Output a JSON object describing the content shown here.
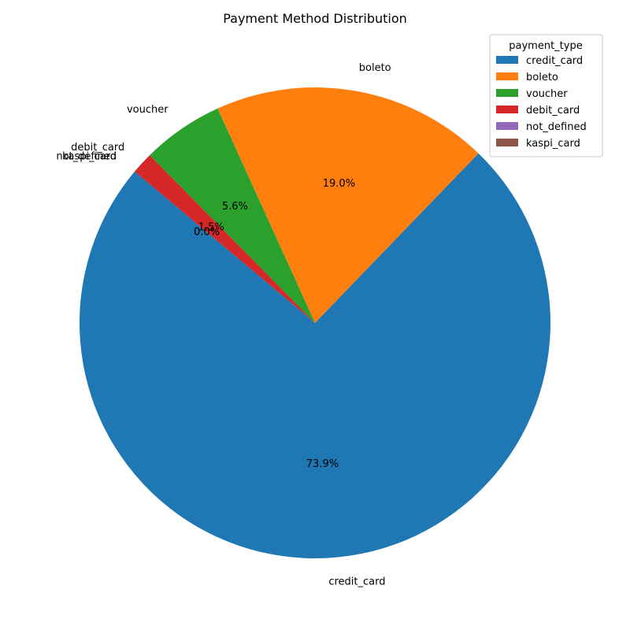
{
  "chart_data": {
    "type": "pie",
    "title": "Payment Method Distribution",
    "legend_title": "payment_type",
    "legend_position": "top-right",
    "start_angle_deg": 140,
    "direction": "counterclockwise",
    "slices": [
      {
        "label": "credit_card",
        "value": 73.9,
        "pct_label": "73.9%",
        "color": "#1f77b4"
      },
      {
        "label": "boleto",
        "value": 19.0,
        "pct_label": "19.0%",
        "color": "#ff7f0e"
      },
      {
        "label": "voucher",
        "value": 5.6,
        "pct_label": "5.6%",
        "color": "#2ca02c"
      },
      {
        "label": "debit_card",
        "value": 1.5,
        "pct_label": "1.5%",
        "color": "#d62728"
      },
      {
        "label": "not_defined",
        "value": 0.0,
        "pct_label": "0.0%",
        "color": "#9467bd"
      },
      {
        "label": "kaspi_card",
        "value": 0.0,
        "pct_label": "0.0%",
        "color": "#8c564b"
      }
    ]
  }
}
